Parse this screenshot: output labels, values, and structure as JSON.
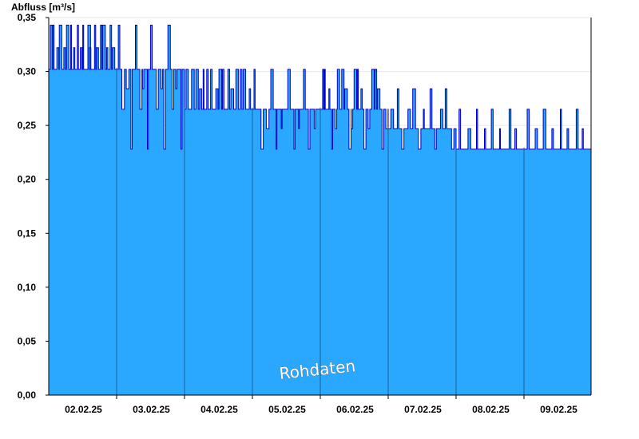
{
  "chart_data": {
    "type": "area",
    "ylabel": "Abfluss [m³/s]",
    "ylim": [
      0,
      0.35
    ],
    "y_ticks": [
      "0,00",
      "0,05",
      "0,10",
      "0,15",
      "0,20",
      "0,25",
      "0,30",
      "0,35"
    ],
    "x_tick_labels": [
      "02.02.25",
      "03.02.25",
      "04.02.25",
      "05.02.25",
      "06.02.25",
      "07.02.25",
      "08.02.25",
      "09.02.25"
    ],
    "x_range_days": [
      "01.02.25 12:00",
      "09.02.25 20:00"
    ],
    "watermark": "Rohdaten",
    "grid": true,
    "colors": {
      "fill": "#2aa8ff",
      "line": "#0000cc",
      "grid": "#e6e6e6",
      "day_separator": "#1f5f96"
    },
    "series": [
      {
        "values_by_day_segment": [
          {
            "day": "02.02.25",
            "base": 0.302,
            "spikes_up": [
              0.343,
              0.343,
              0.322,
              0.343,
              0.322
            ],
            "spikes_down": []
          },
          {
            "day": "03.02.25",
            "base": 0.302,
            "spikes_up": [
              0.343
            ],
            "spikes_down": [
              0.265,
              0.284,
              0.228
            ]
          },
          {
            "day": "04.02.25",
            "base": 0.265,
            "spikes_up": [
              0.302,
              0.302,
              0.302,
              0.284
            ],
            "spikes_down": []
          },
          {
            "day": "05.02.25",
            "base": 0.265,
            "spikes_up": [
              0.302
            ],
            "spikes_down": [
              0.228,
              0.247
            ]
          },
          {
            "day": "06.02.25",
            "base": 0.265,
            "spikes_up": [
              0.302,
              0.302,
              0.284
            ],
            "spikes_down": [
              0.228,
              0.247
            ]
          },
          {
            "day": "07.02.25",
            "base": 0.247,
            "spikes_up": [
              0.265,
              0.284
            ],
            "spikes_down": [
              0.228
            ]
          },
          {
            "day": "08.02.25",
            "base": 0.228,
            "spikes_up": [
              0.265,
              0.247
            ],
            "spikes_down": []
          },
          {
            "day": "09.02.25",
            "base": 0.228,
            "spikes_up": [
              0.265,
              0.247
            ],
            "spikes_down": []
          }
        ]
      }
    ]
  }
}
